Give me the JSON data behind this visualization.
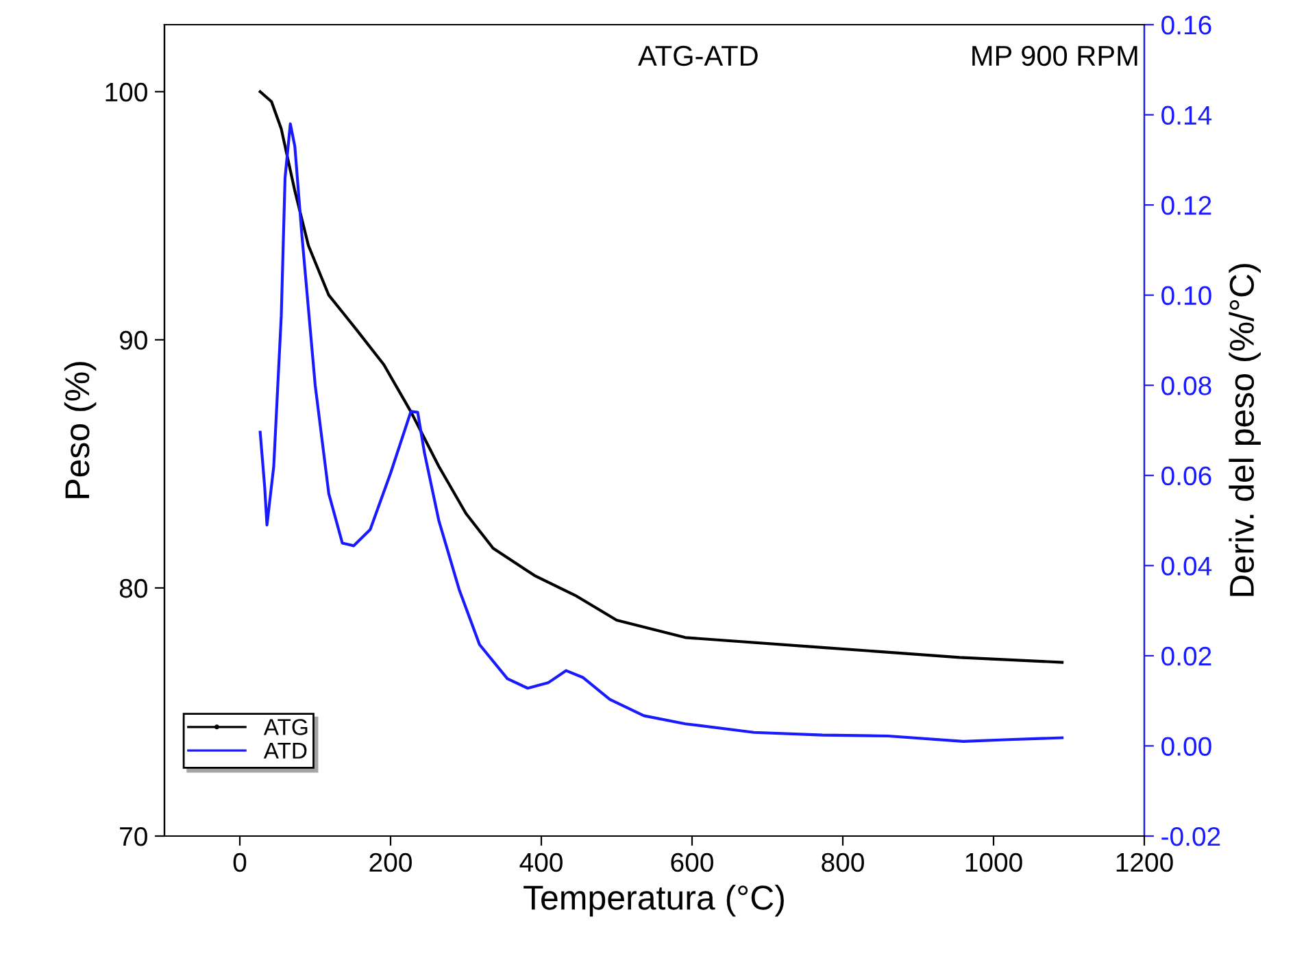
{
  "chart_data": {
    "type": "line",
    "xlabel": "Temperatura (°C)",
    "ylabel": "Peso (%)",
    "y2label": "Deriv. del peso (%/°C)",
    "annotations": [
      "ATG-ATD",
      "MP 900 RPM"
    ],
    "xlim": [
      -100,
      1200
    ],
    "xticks": [
      0,
      200,
      400,
      600,
      800,
      1000,
      1200
    ],
    "ylim": [
      70,
      102.7
    ],
    "yticks": [
      70,
      80,
      90,
      100
    ],
    "y2lim": [
      -0.02,
      0.16
    ],
    "y2ticks": [
      {
        "value": -0.02,
        "label": "-0.02"
      },
      {
        "value": 0,
        "label": "0.00"
      },
      {
        "value": 0.02,
        "label": "0.02"
      },
      {
        "value": 0.04,
        "label": "0.04"
      },
      {
        "value": 0.06,
        "label": "0.06"
      },
      {
        "value": 0.08,
        "label": "0.08"
      },
      {
        "value": 0.1,
        "label": "0.10"
      },
      {
        "value": 0.12,
        "label": "0.12"
      },
      {
        "value": 0.14,
        "label": "0.14"
      },
      {
        "value": 0.16,
        "label": "0.16"
      }
    ],
    "legend": "bottom left",
    "grid": false,
    "line_style": "solid",
    "series": [
      {
        "name": "ATG",
        "color": "#000000",
        "x": [
          27,
          42,
          55,
          73,
          91,
          118,
          155,
          191,
          227,
          264,
          300,
          336,
          391,
          445,
          500,
          591,
          773,
          955,
          1091
        ],
        "values": [
          100,
          99.6,
          98.5,
          96,
          93.8,
          91.8,
          90.4,
          89,
          87.1,
          84.9,
          83,
          81.6,
          80.5,
          79.7,
          78.7,
          78,
          77.6,
          77.2,
          77.0
        ]
      },
      {
        "name": "ATD",
        "color": "#1a1aff",
        "axis": "y2",
        "x": [
          27,
          33,
          36,
          45,
          55,
          60,
          67,
          73,
          82,
          100,
          118,
          136,
          151,
          173,
          200,
          227,
          236,
          245,
          264,
          291,
          318,
          355,
          382,
          409,
          433,
          455,
          491,
          536,
          591,
          682,
          773,
          860,
          960,
          1020,
          1091
        ],
        "values": [
          0.0696,
          0.0574,
          0.049,
          0.062,
          0.0954,
          0.126,
          0.138,
          0.133,
          0.114,
          0.08,
          0.056,
          0.045,
          0.0444,
          0.048,
          0.0605,
          0.0742,
          0.074,
          0.065,
          0.05,
          0.0347,
          0.0225,
          0.0149,
          0.0128,
          0.014,
          0.0167,
          0.0152,
          0.0103,
          0.0067,
          0.0049,
          0.003,
          0.0024,
          0.0022,
          0.001,
          0.0014,
          0.0018
        ]
      }
    ]
  }
}
